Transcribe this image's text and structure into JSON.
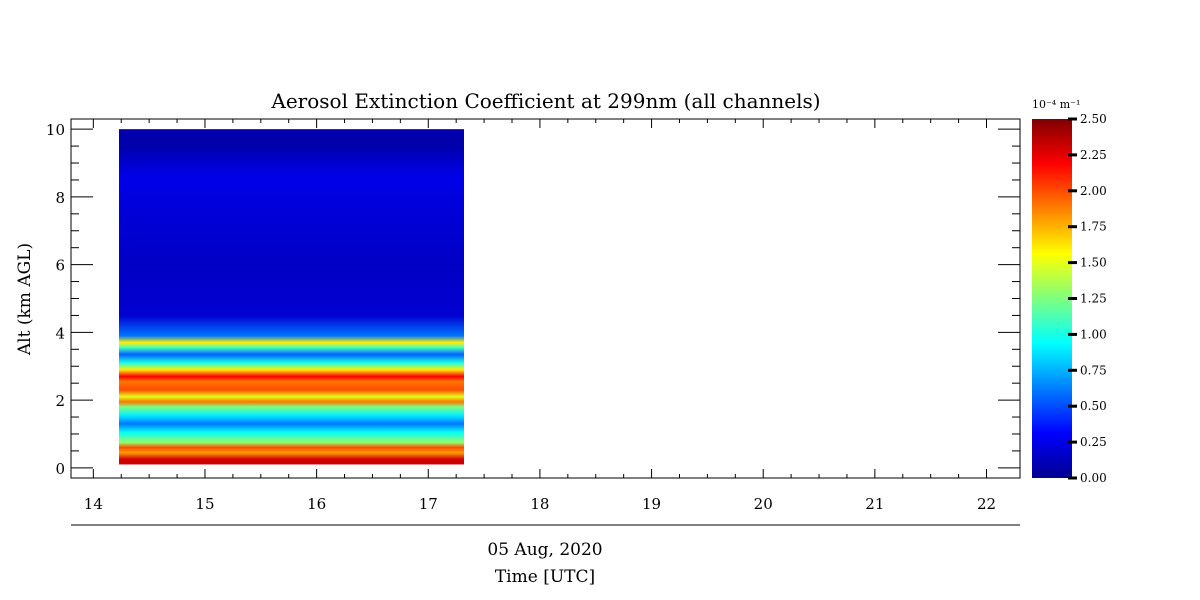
{
  "chart_data": {
    "type": "heatmap",
    "title": "Aerosol Extinction Coefficient at 299nm (all channels)",
    "xlabel": "Time [UTC]",
    "xsublabel": "05 Aug, 2020",
    "ylabel": "Alt (km AGL)",
    "xlim": [
      13.8,
      22.3
    ],
    "ylim": [
      -0.3,
      10.3
    ],
    "x_ticks": [
      "14",
      "15",
      "16",
      "17",
      "18",
      "19",
      "20",
      "21",
      "22"
    ],
    "x_tick_values": [
      14,
      15,
      16,
      17,
      18,
      19,
      20,
      21,
      22
    ],
    "y_ticks": [
      "0",
      "2",
      "4",
      "6",
      "8",
      "10"
    ],
    "y_tick_values": [
      0,
      2,
      4,
      6,
      8,
      10
    ],
    "data_extent": {
      "time_start": 14.23,
      "time_end": 17.32,
      "alt_min": 0.1,
      "alt_max": 10.0
    },
    "colorbar": {
      "units": "10⁻⁴ m⁻¹",
      "range": [
        0.0,
        2.5
      ],
      "ticks": [
        "0.00",
        "0.25",
        "0.50",
        "0.75",
        "1.00",
        "1.25",
        "1.50",
        "1.75",
        "2.00",
        "2.25",
        "2.50"
      ],
      "tick_values": [
        0,
        0.25,
        0.5,
        0.75,
        1.0,
        1.25,
        1.5,
        1.75,
        2.0,
        2.25,
        2.5
      ],
      "colormap": "jet"
    },
    "layers": [
      {
        "alt_km": 0.25,
        "value": 2.3
      },
      {
        "alt_km": 0.45,
        "value": 1.8
      },
      {
        "alt_km": 0.6,
        "value": 2.0
      },
      {
        "alt_km": 0.75,
        "value": 1.3
      },
      {
        "alt_km": 1.05,
        "value": 0.95
      },
      {
        "alt_km": 1.3,
        "value": 0.6
      },
      {
        "alt_km": 1.55,
        "value": 0.9
      },
      {
        "alt_km": 1.8,
        "value": 1.25
      },
      {
        "alt_km": 1.95,
        "value": 1.9
      },
      {
        "alt_km": 2.1,
        "value": 1.5
      },
      {
        "alt_km": 2.3,
        "value": 2.0
      },
      {
        "alt_km": 2.55,
        "value": 1.9
      },
      {
        "alt_km": 2.7,
        "value": 2.2
      },
      {
        "alt_km": 2.9,
        "value": 1.6
      },
      {
        "alt_km": 3.1,
        "value": 1.0
      },
      {
        "alt_km": 3.35,
        "value": 0.55
      },
      {
        "alt_km": 3.55,
        "value": 1.1
      },
      {
        "alt_km": 3.7,
        "value": 1.6
      },
      {
        "alt_km": 3.9,
        "value": 0.6
      },
      {
        "alt_km": 4.5,
        "value": 0.18
      },
      {
        "alt_km": 6.0,
        "value": 0.15
      },
      {
        "alt_km": 7.5,
        "value": 0.2
      },
      {
        "alt_km": 8.6,
        "value": 0.25
      },
      {
        "alt_km": 9.5,
        "value": 0.08
      }
    ]
  },
  "colors": {
    "axis": "#000000",
    "background": "#ffffff"
  }
}
